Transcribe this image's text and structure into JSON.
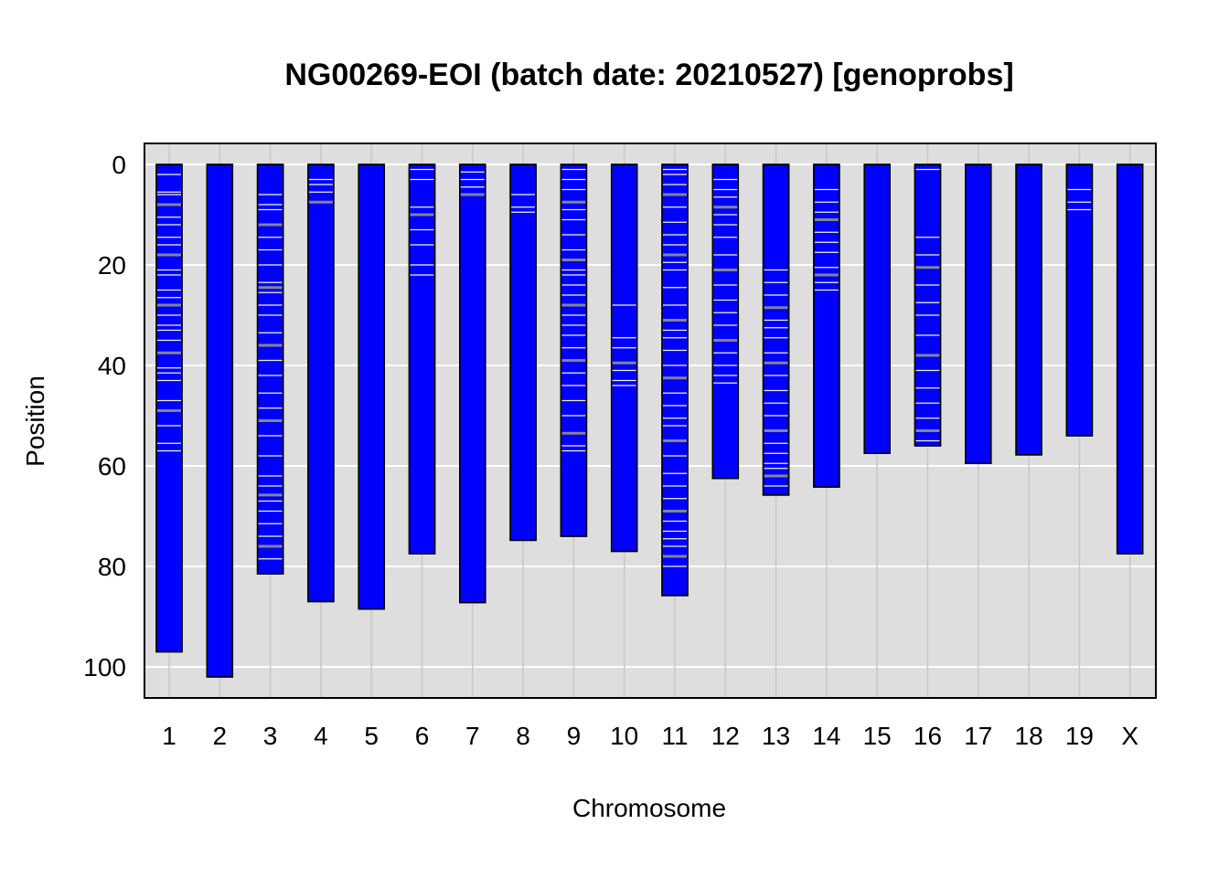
{
  "chart_data": {
    "type": "bar",
    "title": "NG00269-EOI (batch date: 20210527) [genoprobs]",
    "xlabel": "Chromosome",
    "ylabel": "Position",
    "categories": [
      "1",
      "2",
      "3",
      "4",
      "5",
      "6",
      "7",
      "8",
      "9",
      "10",
      "11",
      "12",
      "13",
      "14",
      "15",
      "16",
      "17",
      "18",
      "19",
      "X"
    ],
    "values": [
      97,
      102,
      81.5,
      87,
      88.5,
      77.5,
      87.2,
      74.8,
      74,
      77,
      85.8,
      62.5,
      65.8,
      64.2,
      57.5,
      56,
      59.5,
      57.8,
      54,
      77.5
    ],
    "ylim": [
      0,
      105.7
    ],
    "y_reversed": true,
    "yticks": [
      0,
      20,
      40,
      60,
      80,
      100
    ],
    "grid": true,
    "colors": {
      "chromosome_fill": "#0000ff",
      "panel_background": "#dedede",
      "gridline": "#ffffff",
      "vertical_gridline": "#c8c8c8",
      "marker_light": "#ffffff",
      "marker_dark": "#8c8c8c"
    },
    "markers": [
      {
        "chr": "1",
        "positions": [
          2,
          5.5,
          6,
          8,
          10.5,
          12,
          14.5,
          16,
          18,
          21,
          22,
          25,
          26.5,
          28,
          30,
          32,
          33,
          35,
          37.5,
          40.5,
          41.5,
          43,
          47,
          49,
          52,
          55.5,
          57
        ]
      },
      {
        "chr": "3",
        "positions": [
          6,
          8,
          9,
          12,
          14.5,
          17,
          20,
          23.5,
          24.5,
          25.5,
          28,
          30,
          33.5,
          36,
          39,
          42,
          45.5,
          48.5,
          51,
          54,
          58,
          62,
          64,
          65.8,
          67,
          69,
          71.5,
          74,
          76,
          78.5
        ]
      },
      {
        "chr": "4",
        "positions": [
          3,
          4,
          5.5,
          7.5
        ]
      },
      {
        "chr": "6",
        "positions": [
          1,
          3,
          8.5,
          10,
          13,
          16,
          20,
          22
        ]
      },
      {
        "chr": "7",
        "positions": [
          1.5,
          3,
          4.5,
          6
        ]
      },
      {
        "chr": "8",
        "positions": [
          6,
          8.5,
          9.5
        ]
      },
      {
        "chr": "9",
        "positions": [
          1,
          3,
          5,
          7.5,
          9,
          11,
          14,
          17,
          19,
          21,
          22,
          24,
          26,
          28,
          30,
          32,
          34,
          36.5,
          39,
          41.5,
          44,
          47,
          50,
          53.5,
          56,
          57
        ]
      },
      {
        "chr": "10",
        "positions": [
          28,
          34.5,
          36.5,
          39.5,
          41,
          43,
          44
        ]
      },
      {
        "chr": "11",
        "positions": [
          1,
          2,
          4,
          6,
          8.5,
          11.5,
          14,
          16,
          18,
          19.5,
          21,
          24.5,
          28,
          31,
          33,
          34.5,
          37,
          40,
          42.5,
          45.5,
          48,
          50.5,
          52,
          55,
          58,
          61.5,
          64,
          66.5,
          69,
          71,
          73,
          74.5,
          76,
          78,
          80
        ]
      },
      {
        "chr": "12",
        "positions": [
          3,
          5,
          6.5,
          8.5,
          10,
          12,
          14.5,
          18,
          21,
          24,
          27,
          29.5,
          32,
          35,
          37.5,
          40,
          42,
          43.5
        ]
      },
      {
        "chr": "13",
        "positions": [
          21,
          23.5,
          26,
          28.5,
          31,
          32.5,
          34.5,
          37.5,
          39.5,
          42,
          45,
          47.5,
          50,
          53,
          55.5,
          57.5,
          59.5,
          60.5,
          62,
          64
        ]
      },
      {
        "chr": "14",
        "positions": [
          5,
          7.5,
          9.5,
          11,
          13.5,
          15.5,
          17.5,
          20.5,
          22,
          23.5,
          25
        ]
      },
      {
        "chr": "16",
        "positions": [
          1,
          14.5,
          18,
          20.5,
          24,
          27.5,
          30,
          34,
          38,
          41,
          44.5,
          47.5,
          50.5,
          53,
          55
        ]
      },
      {
        "chr": "19",
        "positions": [
          5,
          7.5,
          9
        ]
      }
    ]
  }
}
